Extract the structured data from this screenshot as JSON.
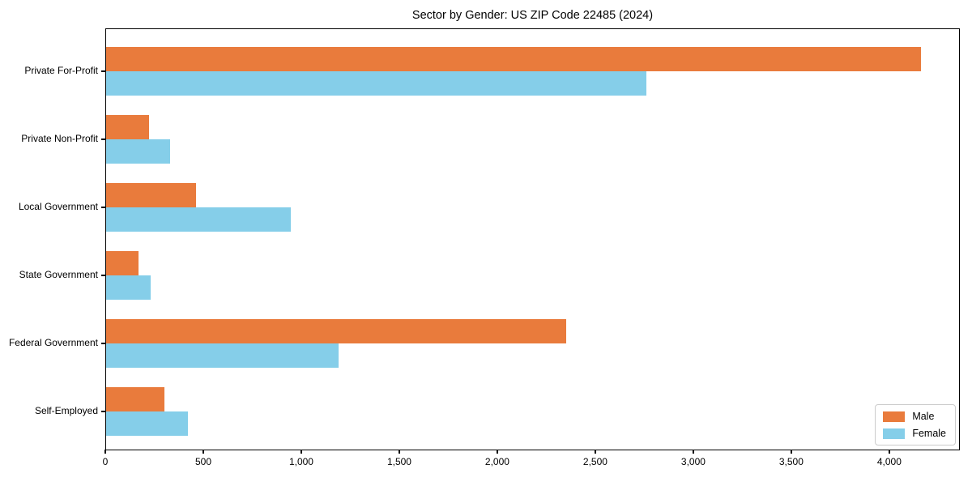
{
  "chart_data": {
    "type": "bar",
    "orientation": "horizontal",
    "title": "Sector by Gender: US ZIP Code 22485 (2024)",
    "xlabel": "",
    "ylabel": "",
    "categories": [
      "Private For-Profit",
      "Private Non-Profit",
      "Local Government",
      "State Government",
      "Federal Government",
      "Self-Employed"
    ],
    "series": [
      {
        "name": "Male",
        "color": "#E97B3C",
        "values": [
          4156,
          220,
          458,
          164,
          2346,
          297
        ]
      },
      {
        "name": "Female",
        "color": "#85CEE9",
        "values": [
          2757,
          327,
          944,
          229,
          1186,
          417
        ]
      }
    ],
    "xlim": [
      0,
      4360
    ],
    "xticks": [
      0,
      500,
      1000,
      1500,
      2000,
      2500,
      3000,
      3500,
      4000
    ],
    "xtick_labels": [
      "0",
      "500",
      "1,000",
      "1,500",
      "2,000",
      "2,500",
      "3,000",
      "3,500",
      "4,000"
    ],
    "grid": false,
    "legend_position": "lower right",
    "frame_color": "#000000",
    "background_color": "#ffffff"
  }
}
